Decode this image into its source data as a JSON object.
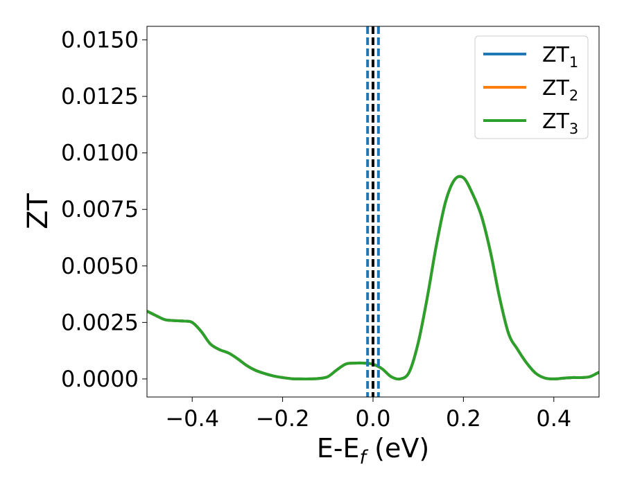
{
  "chart_data": {
    "type": "line",
    "xlabel": "E-E",
    "xlabel_sub": "f",
    "xlabel_unit": " (eV)",
    "ylabel": "ZT",
    "xlim": [
      -0.5,
      0.5
    ],
    "ylim": [
      -0.0008,
      0.0156
    ],
    "xticks": [
      -0.4,
      -0.2,
      0.0,
      0.2,
      0.4
    ],
    "xtick_labels": [
      "−0.4",
      "−0.2",
      "0.0",
      "0.2",
      "0.4"
    ],
    "yticks": [
      0.0,
      0.0025,
      0.005,
      0.0075,
      0.01,
      0.0125,
      0.015
    ],
    "ytick_labels": [
      "0.0000",
      "0.0025",
      "0.0050",
      "0.0075",
      "0.0100",
      "0.0125",
      "0.0150"
    ],
    "grid": false,
    "legend_position": "top-right",
    "vlines": [
      {
        "x": -0.012,
        "style": "dashed",
        "color": "#1f77b4"
      },
      {
        "x": 0.012,
        "style": "dashed",
        "color": "#1f77b4"
      },
      {
        "x": 0.0,
        "style": "dashed",
        "color": "#000000"
      }
    ],
    "x": [
      -0.5,
      -0.48,
      -0.46,
      -0.44,
      -0.42,
      -0.4,
      -0.38,
      -0.36,
      -0.34,
      -0.32,
      -0.3,
      -0.28,
      -0.26,
      -0.24,
      -0.22,
      -0.2,
      -0.18,
      -0.16,
      -0.14,
      -0.12,
      -0.1,
      -0.08,
      -0.06,
      -0.04,
      -0.02,
      0.0,
      0.02,
      0.04,
      0.06,
      0.08,
      0.1,
      0.12,
      0.14,
      0.16,
      0.18,
      0.2,
      0.22,
      0.24,
      0.26,
      0.28,
      0.3,
      0.32,
      0.34,
      0.36,
      0.38,
      0.4,
      0.42,
      0.44,
      0.46,
      0.48,
      0.5
    ],
    "series": [
      {
        "name": "ZT",
        "sub": "1",
        "color": "#1f77b4",
        "values": [
          0.003,
          0.0028,
          0.00262,
          0.00258,
          0.00256,
          0.0025,
          0.0021,
          0.00155,
          0.0013,
          0.00115,
          0.0009,
          0.0006,
          0.00038,
          0.00024,
          0.00013,
          6e-05,
          1e-05,
          0.0,
          0.0,
          2e-05,
          0.0001,
          0.0004,
          0.00066,
          0.0007,
          0.0007,
          0.00065,
          0.00045,
          0.0001,
          0.0,
          0.0003,
          0.0016,
          0.0036,
          0.0059,
          0.0078,
          0.0088,
          0.0089,
          0.0082,
          0.0072,
          0.0056,
          0.0036,
          0.002,
          0.0013,
          0.0007,
          0.00025,
          4e-05,
          0.0,
          3e-05,
          6e-05,
          6e-05,
          0.0001,
          0.0003
        ]
      },
      {
        "name": "ZT",
        "sub": "2",
        "color": "#ff7f0e",
        "values": [
          0.003,
          0.0028,
          0.00262,
          0.00258,
          0.00256,
          0.0025,
          0.0021,
          0.00155,
          0.0013,
          0.00115,
          0.0009,
          0.0006,
          0.00038,
          0.00024,
          0.00013,
          6e-05,
          1e-05,
          0.0,
          0.0,
          2e-05,
          0.0001,
          0.0004,
          0.00066,
          0.0007,
          0.0007,
          0.00065,
          0.00045,
          0.0001,
          0.0,
          0.0003,
          0.0016,
          0.0036,
          0.0059,
          0.0078,
          0.0088,
          0.0089,
          0.0082,
          0.0072,
          0.0056,
          0.0036,
          0.002,
          0.0013,
          0.0007,
          0.00025,
          4e-05,
          0.0,
          3e-05,
          6e-05,
          6e-05,
          0.0001,
          0.0003
        ]
      },
      {
        "name": "ZT",
        "sub": "3",
        "color": "#2ca02c",
        "values": [
          0.003,
          0.0028,
          0.00262,
          0.00258,
          0.00256,
          0.0025,
          0.0021,
          0.00155,
          0.0013,
          0.00115,
          0.0009,
          0.0006,
          0.00038,
          0.00024,
          0.00013,
          6e-05,
          1e-05,
          0.0,
          0.0,
          2e-05,
          0.0001,
          0.0004,
          0.00066,
          0.0007,
          0.0007,
          0.00065,
          0.00045,
          0.0001,
          0.0,
          0.0003,
          0.0016,
          0.0036,
          0.0059,
          0.0078,
          0.0088,
          0.0089,
          0.0082,
          0.0072,
          0.0056,
          0.0036,
          0.002,
          0.0013,
          0.0007,
          0.00025,
          4e-05,
          0.0,
          3e-05,
          6e-05,
          6e-05,
          0.0001,
          0.0003
        ]
      }
    ]
  }
}
